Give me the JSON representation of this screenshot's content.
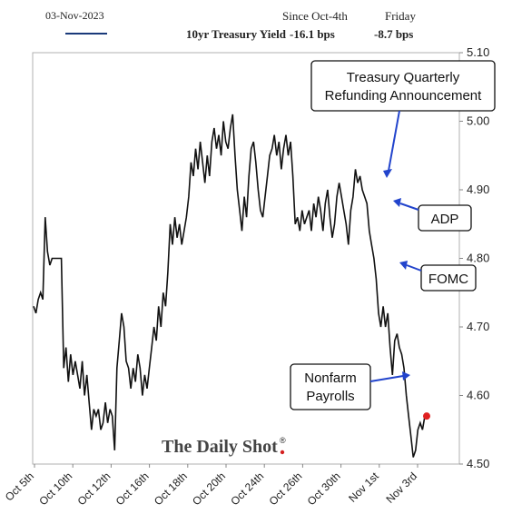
{
  "header": {
    "date": "03-Nov-2023",
    "series_label": "10yr Treasury Yield",
    "col1_title": "Since Oct-4th",
    "col1_value": "-16.1 bps",
    "col2_title": "Friday",
    "col2_value": "-8.7 bps",
    "line_color": "#1a3a7a"
  },
  "brand": "The Daily Shot",
  "brand_mark": "®",
  "annotations": [
    {
      "text_lines": [
        "Treasury Quarterly",
        "Refunding Announcement"
      ]
    },
    {
      "text_lines": [
        "ADP"
      ]
    },
    {
      "text_lines": [
        "FOMC"
      ]
    },
    {
      "text_lines": [
        "Nonfarm",
        "Payrolls"
      ]
    }
  ],
  "chart_data": {
    "type": "line",
    "ylim": [
      4.5,
      5.1
    ],
    "yticks": [
      "4.50",
      "4.60",
      "4.70",
      "4.80",
      "4.90",
      "5.00",
      "5.10"
    ],
    "xticks": [
      "Oct 5th",
      "Oct 10th",
      "Oct 12th",
      "Oct 16th",
      "Oct 18th",
      "Oct 20th",
      "Oct 24th",
      "Oct 26th",
      "Oct 30th",
      "Nov 1st",
      "Nov 3rd"
    ],
    "grid": false,
    "series": [
      {
        "color": "#111111",
        "values": [
          4.73,
          4.72,
          4.74,
          4.75,
          4.74,
          4.86,
          4.81,
          4.79,
          4.8,
          4.8,
          4.8,
          4.8,
          4.8,
          4.64,
          4.67,
          4.62,
          4.66,
          4.63,
          4.65,
          4.63,
          4.61,
          4.65,
          4.6,
          4.63,
          4.59,
          4.55,
          4.58,
          4.57,
          4.58,
          4.55,
          4.56,
          4.59,
          4.56,
          4.58,
          4.57,
          4.52,
          4.64,
          4.68,
          4.72,
          4.7,
          4.65,
          4.64,
          4.61,
          4.64,
          4.62,
          4.66,
          4.64,
          4.6,
          4.63,
          4.61,
          4.64,
          4.67,
          4.7,
          4.68,
          4.73,
          4.7,
          4.75,
          4.73,
          4.78,
          4.85,
          4.82,
          4.86,
          4.83,
          4.85,
          4.82,
          4.84,
          4.86,
          4.89,
          4.94,
          4.92,
          4.96,
          4.93,
          4.97,
          4.94,
          4.91,
          4.95,
          4.92,
          4.97,
          4.99,
          4.96,
          4.98,
          4.95,
          5.0,
          4.97,
          4.96,
          4.99,
          5.01,
          4.95,
          4.9,
          4.87,
          4.84,
          4.89,
          4.86,
          4.92,
          4.96,
          4.97,
          4.94,
          4.9,
          4.87,
          4.86,
          4.89,
          4.92,
          4.95,
          4.96,
          4.98,
          4.95,
          4.97,
          4.93,
          4.96,
          4.98,
          4.95,
          4.97,
          4.92,
          4.85,
          4.86,
          4.84,
          4.87,
          4.85,
          4.86,
          4.87,
          4.84,
          4.88,
          4.86,
          4.89,
          4.87,
          4.84,
          4.88,
          4.9,
          4.86,
          4.83,
          4.85,
          4.89,
          4.91,
          4.89,
          4.87,
          4.85,
          4.82,
          4.87,
          4.89,
          4.93,
          4.91,
          4.92,
          4.9,
          4.89,
          4.88,
          4.84,
          4.82,
          4.8,
          4.77,
          4.72,
          4.7,
          4.73,
          4.7,
          4.72,
          4.67,
          4.63,
          4.68,
          4.69,
          4.67,
          4.66,
          4.64,
          4.6,
          4.57,
          4.54,
          4.51,
          4.52,
          4.55,
          4.56,
          4.55,
          4.57
        ]
      }
    ],
    "last_point_color": "#e02020"
  }
}
